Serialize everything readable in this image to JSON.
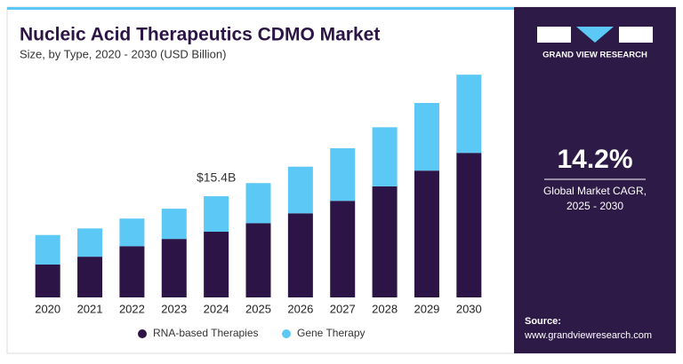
{
  "chart_data": {
    "type": "stacked_bar",
    "title": "Nucleic Acid Therapeutics CDMO Market",
    "subtitle": "Size, by Type, 2020 - 2030 (USD Billion)",
    "categories": [
      "2020",
      "2021",
      "2022",
      "2023",
      "2024",
      "2025",
      "2026",
      "2027",
      "2028",
      "2029",
      "2030"
    ],
    "series": [
      {
        "name": "RNA-based Therapies",
        "color": "#2d1446",
        "values": [
          5.0,
          6.2,
          7.8,
          8.9,
          10.0,
          11.3,
          12.8,
          14.7,
          16.9,
          19.3,
          22.0
        ]
      },
      {
        "name": "Gene Therapy",
        "color": "#5bc8f5",
        "values": [
          4.5,
          4.3,
          4.2,
          4.6,
          5.4,
          6.1,
          7.1,
          8.0,
          9.0,
          10.3,
          11.9
        ]
      }
    ],
    "ylim": [
      0,
      40
    ],
    "annotations": [
      {
        "text": "$15.4B",
        "category": "2024"
      }
    ]
  },
  "sidebar": {
    "brand": "GRAND VIEW RESEARCH",
    "stat": "14.2%",
    "stat_caption": [
      "Global Market CAGR,",
      "2025 - 2030"
    ],
    "source_label": "Source:",
    "source_url": "www.grandviewresearch.com"
  }
}
